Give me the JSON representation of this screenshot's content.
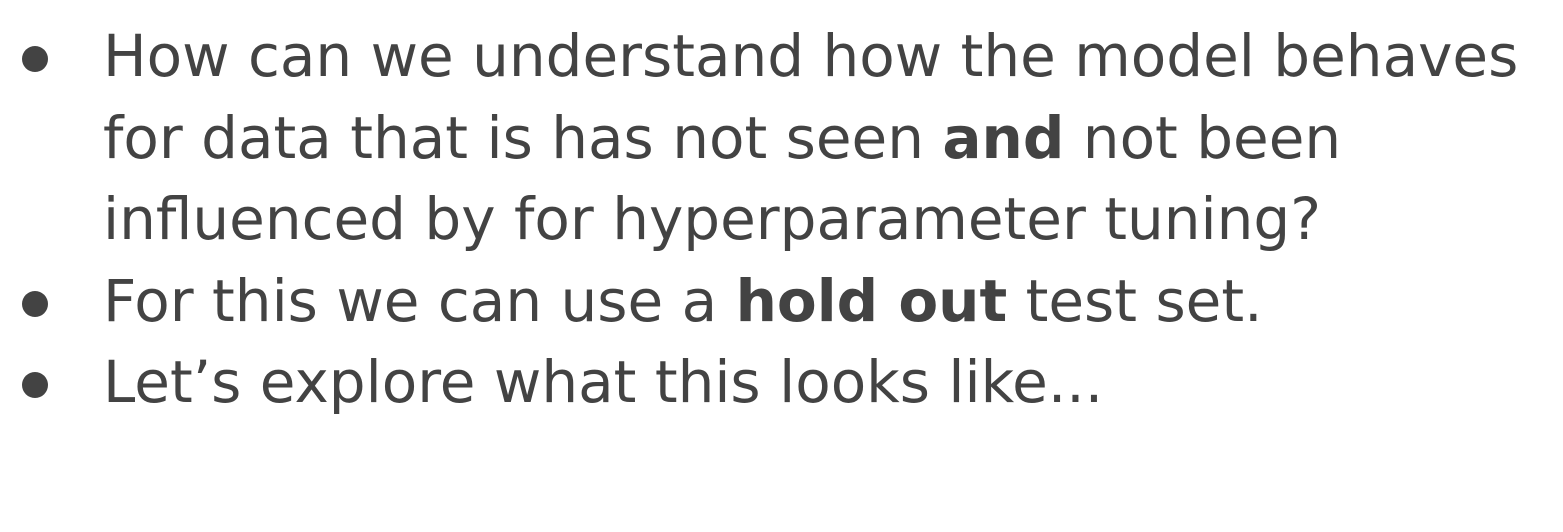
{
  "bullets": [
    {
      "segments": [
        {
          "text": "How can we understand how the model behaves for data that is has not seen ",
          "bold": false
        },
        {
          "text": "and",
          "bold": true
        },
        {
          "text": " not been influenced by for hyperparameter tuning?",
          "bold": false
        }
      ]
    },
    {
      "segments": [
        {
          "text": "For this we can use a ",
          "bold": false
        },
        {
          "text": "hold out",
          "bold": true
        },
        {
          "text": " test set.",
          "bold": false
        }
      ]
    },
    {
      "segments": [
        {
          "text": "Let’s explore what this looks like...",
          "bold": false
        }
      ]
    }
  ],
  "colors": {
    "text": "#434343",
    "background": "#ffffff"
  }
}
